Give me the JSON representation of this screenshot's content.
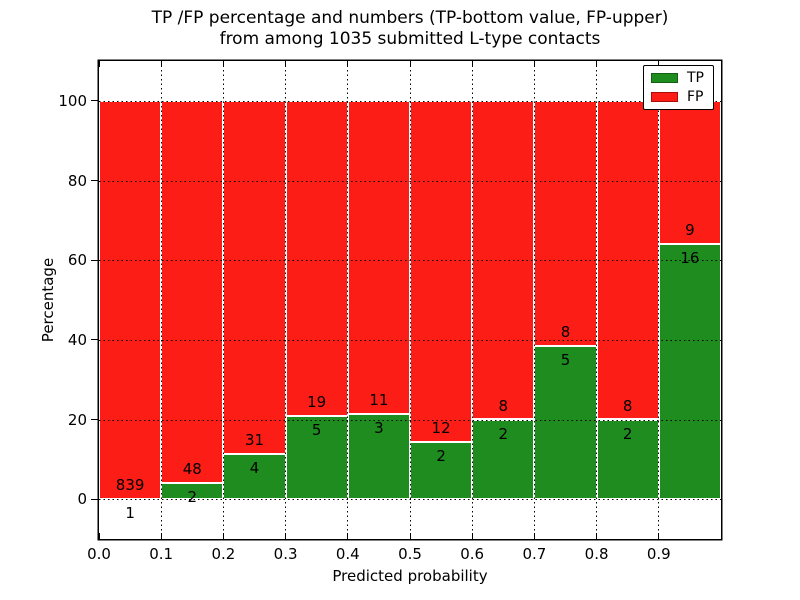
{
  "title": {
    "line1": "TP /FP percentage and numbers (TP-bottom value, FP-upper)",
    "line2": "from among 1035 submitted L-type contacts"
  },
  "chart_data": {
    "type": "bar",
    "stacked": true,
    "normalized": "each bin stacks to 100 percent",
    "total_contacts": 1035,
    "bins": [
      "0.0-0.1",
      "0.1-0.2",
      "0.2-0.3",
      "0.3-0.4",
      "0.4-0.5",
      "0.5-0.6",
      "0.6-0.7",
      "0.7-0.8",
      "0.8-0.9",
      "0.9-1.0"
    ],
    "bin_starts": [
      0.0,
      0.1,
      0.2,
      0.3,
      0.4,
      0.5,
      0.6,
      0.7,
      0.8,
      0.9
    ],
    "bin_width": 0.1,
    "series": [
      {
        "name": "TP",
        "color": "#1f8c1f",
        "edge": "#136113",
        "counts": [
          1,
          2,
          4,
          5,
          3,
          2,
          2,
          5,
          2,
          16
        ]
      },
      {
        "name": "FP",
        "color": "#fb1d16",
        "edge": "#a90f0a",
        "counts": [
          839,
          48,
          31,
          19,
          11,
          12,
          8,
          8,
          8,
          9
        ]
      }
    ],
    "tp_percent": [
      0.119,
      4.0,
      11.429,
      20.833,
      21.429,
      14.286,
      20.0,
      38.462,
      20.0,
      64.0
    ],
    "xlabel": "Predicted probability",
    "ylabel": "Percentage",
    "xlim": [
      0.0,
      1.0
    ],
    "ylim": [
      -10,
      110
    ],
    "xtick_labels": [
      "0.0",
      "0.1",
      "0.2",
      "0.3",
      "0.4",
      "0.5",
      "0.6",
      "0.7",
      "0.8",
      "0.9"
    ],
    "ytick_values": [
      0,
      20,
      40,
      60,
      80,
      100
    ],
    "grid": "dotted black, drawn above bars",
    "bar_edge_color": "#ffffff",
    "legend": {
      "position": "upper right",
      "entries": [
        {
          "label": "TP",
          "color": "#1f8c1f",
          "edge": "#136113"
        },
        {
          "label": "FP",
          "color": "#fb1d16",
          "edge": "#a90f0a"
        }
      ]
    }
  }
}
